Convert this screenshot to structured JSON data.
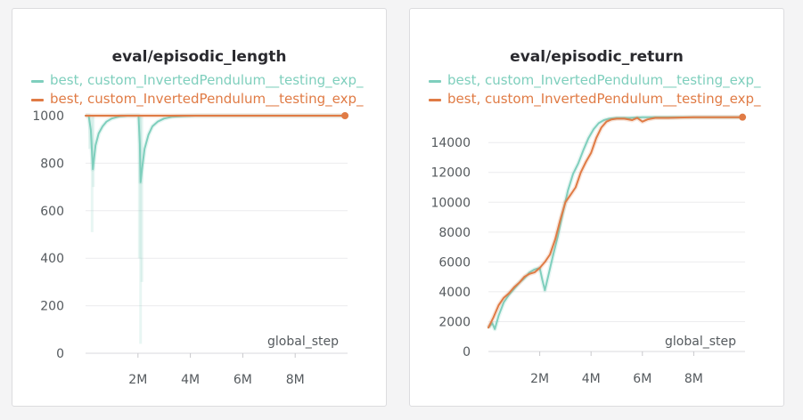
{
  "chart_data": [
    {
      "type": "line",
      "title": "eval/episodic_length",
      "xlabel": "global_step",
      "ylabel": "",
      "xlim": [
        0,
        10000000
      ],
      "ylim": [
        0,
        1000
      ],
      "x_ticks": [
        2000000,
        4000000,
        6000000,
        8000000
      ],
      "x_tick_labels": [
        "2M",
        "4M",
        "6M",
        "8M"
      ],
      "y_ticks": [
        0,
        200,
        400,
        600,
        800,
        1000
      ],
      "y_tick_labels": [
        "0",
        "200",
        "400",
        "600",
        "800",
        "1000"
      ],
      "grid": true,
      "legend_position": "top",
      "series": [
        {
          "name": "best, custom_InvertedPendulum__testing_exp_",
          "color": "#7fcfbd",
          "x": [
            0,
            120000,
            200000,
            280000,
            380000,
            500000,
            650000,
            800000,
            1000000,
            1300000,
            1600000,
            1900000,
            2020000,
            2070000,
            2100000,
            2150000,
            2250000,
            2400000,
            2550000,
            2750000,
            3000000,
            3300000,
            3700000,
            4200000,
            5000000,
            6000000,
            7000000,
            8000000,
            9000000,
            9900000
          ],
          "values": [
            1000,
            1000,
            940,
            775,
            875,
            925,
            955,
            975,
            988,
            997,
            1000,
            1000,
            1000,
            880,
            720,
            770,
            860,
            920,
            955,
            975,
            988,
            995,
            998,
            1000,
            1000,
            1000,
            1000,
            1000,
            1000,
            1000
          ],
          "raw_x": [
            150000,
            250000,
            300000,
            2050000,
            2100000,
            2150000
          ],
          "raw_values": [
            860,
            510,
            700,
            400,
            40,
            300
          ]
        },
        {
          "name": "best, custom_InvertedPendulum__testing_exp_",
          "color": "#e07b45",
          "x": [
            0,
            9900000
          ],
          "values": [
            1000,
            1000
          ]
        }
      ]
    },
    {
      "type": "line",
      "title": "eval/episodic_return",
      "xlabel": "global_step",
      "ylabel": "",
      "xlim": [
        0,
        10000000
      ],
      "ylim": [
        0,
        15800
      ],
      "x_ticks": [
        2000000,
        4000000,
        6000000,
        8000000
      ],
      "x_tick_labels": [
        "2M",
        "4M",
        "6M",
        "8M"
      ],
      "y_ticks": [
        0,
        2000,
        4000,
        6000,
        8000,
        10000,
        12000,
        14000
      ],
      "y_tick_labels": [
        "0",
        "2000",
        "4000",
        "6000",
        "8000",
        "10000",
        "12000",
        "14000"
      ],
      "grid": true,
      "legend_position": "top",
      "series": [
        {
          "name": "best, custom_InvertedPendulum__testing_exp_",
          "color": "#7fcfbd",
          "x": [
            0,
            150000,
            250000,
            400000,
            600000,
            800000,
            1000000,
            1200000,
            1400000,
            1600000,
            1800000,
            2000000,
            2100000,
            2200000,
            2350000,
            2500000,
            2700000,
            2900000,
            3100000,
            3300000,
            3500000,
            3700000,
            3900000,
            4100000,
            4300000,
            4500000,
            4700000,
            5000000,
            5500000,
            6000000,
            7000000,
            8000000,
            9000000,
            9900000
          ],
          "values": [
            1600,
            1900,
            1500,
            2400,
            3300,
            3800,
            4200,
            4600,
            4900,
            5300,
            5500,
            5600,
            4800,
            4100,
            5200,
            6300,
            7700,
            9300,
            10800,
            11900,
            12600,
            13500,
            14300,
            14900,
            15300,
            15500,
            15600,
            15650,
            15650,
            15700,
            15700,
            15700,
            15700,
            15700
          ]
        },
        {
          "name": "best, custom_InvertedPendulum__testing_exp_",
          "color": "#e07b45",
          "x": [
            0,
            200000,
            400000,
            600000,
            800000,
            1000000,
            1200000,
            1400000,
            1600000,
            1800000,
            2000000,
            2200000,
            2400000,
            2600000,
            2800000,
            3000000,
            3200000,
            3400000,
            3600000,
            3800000,
            4000000,
            4200000,
            4400000,
            4600000,
            4800000,
            5000000,
            5300000,
            5600000,
            5800000,
            6000000,
            6200000,
            6500000,
            7000000,
            8000000,
            9000000,
            9900000
          ],
          "values": [
            1600,
            2300,
            3100,
            3600,
            3900,
            4300,
            4600,
            5000,
            5200,
            5300,
            5600,
            6000,
            6500,
            7500,
            8800,
            10000,
            10500,
            11000,
            12000,
            12700,
            13300,
            14300,
            15000,
            15400,
            15550,
            15600,
            15600,
            15500,
            15650,
            15400,
            15550,
            15650,
            15650,
            15700,
            15700,
            15700
          ]
        }
      ]
    }
  ]
}
